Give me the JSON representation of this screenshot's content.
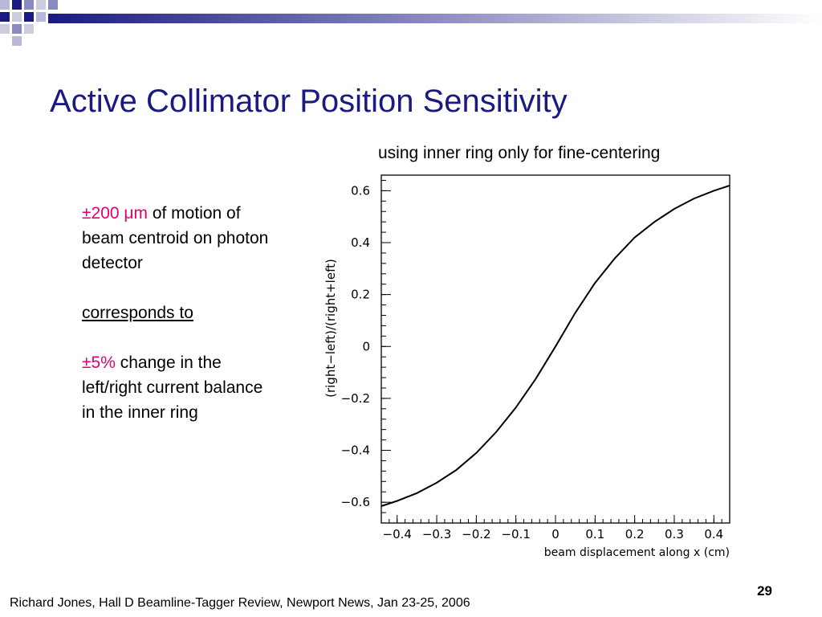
{
  "slide": {
    "title": "Active Collimator Position Sensitivity",
    "subtitle": "using inner ring only for fine-centering",
    "page_number": "29",
    "footer": "Richard Jones, Hall D Beamline-Tagger Review, Newport News, Jan 23-25, 2006",
    "notes": {
      "p1_highlight": "±200 μm",
      "p1_text": " of motion of beam centroid on photon detector",
      "p2_text": "corresponds to",
      "p3_highlight": "±5%",
      "p3_text": " change in the left/right current balance in the inner ring"
    },
    "colors": {
      "title": "#1a1a80",
      "highlight": "#e00070",
      "header_gradient": [
        "#1a1a80",
        "#ffffff"
      ]
    }
  },
  "chart_data": {
    "type": "line",
    "xlabel": "beam displacement along x (cm)",
    "ylabel": "(right−left)/(right+left)",
    "xlim": [
      -0.44,
      0.44
    ],
    "ylim": [
      -0.68,
      0.66
    ],
    "xticks": [
      {
        "v": -0.4,
        "label": "−0.4"
      },
      {
        "v": -0.3,
        "label": "−0.3"
      },
      {
        "v": -0.2,
        "label": "−0.2"
      },
      {
        "v": -0.1,
        "label": "−0.1"
      },
      {
        "v": 0,
        "label": "0"
      },
      {
        "v": 0.1,
        "label": "0.1"
      },
      {
        "v": 0.2,
        "label": "0.2"
      },
      {
        "v": 0.3,
        "label": "0.3"
      },
      {
        "v": 0.4,
        "label": "0.4"
      }
    ],
    "yticks": [
      {
        "v": -0.6,
        "label": "−0.6"
      },
      {
        "v": -0.4,
        "label": "−0.4"
      },
      {
        "v": -0.2,
        "label": "−0.2"
      },
      {
        "v": 0,
        "label": "0"
      },
      {
        "v": 0.2,
        "label": "0.2"
      },
      {
        "v": 0.4,
        "label": "0.4"
      },
      {
        "v": 0.6,
        "label": "0.6"
      }
    ],
    "grid": false,
    "series": [
      {
        "x": [
          -0.44,
          -0.4,
          -0.35,
          -0.3,
          -0.25,
          -0.2,
          -0.15,
          -0.1,
          -0.05,
          0,
          0.05,
          0.1,
          0.15,
          0.2,
          0.25,
          0.3,
          0.35,
          0.4,
          0.44
        ],
        "values": [
          -0.615,
          -0.595,
          -0.565,
          -0.525,
          -0.475,
          -0.41,
          -0.33,
          -0.235,
          -0.125,
          0.0,
          0.13,
          0.245,
          0.34,
          0.42,
          0.48,
          0.53,
          0.57,
          0.6,
          0.62
        ]
      }
    ]
  }
}
